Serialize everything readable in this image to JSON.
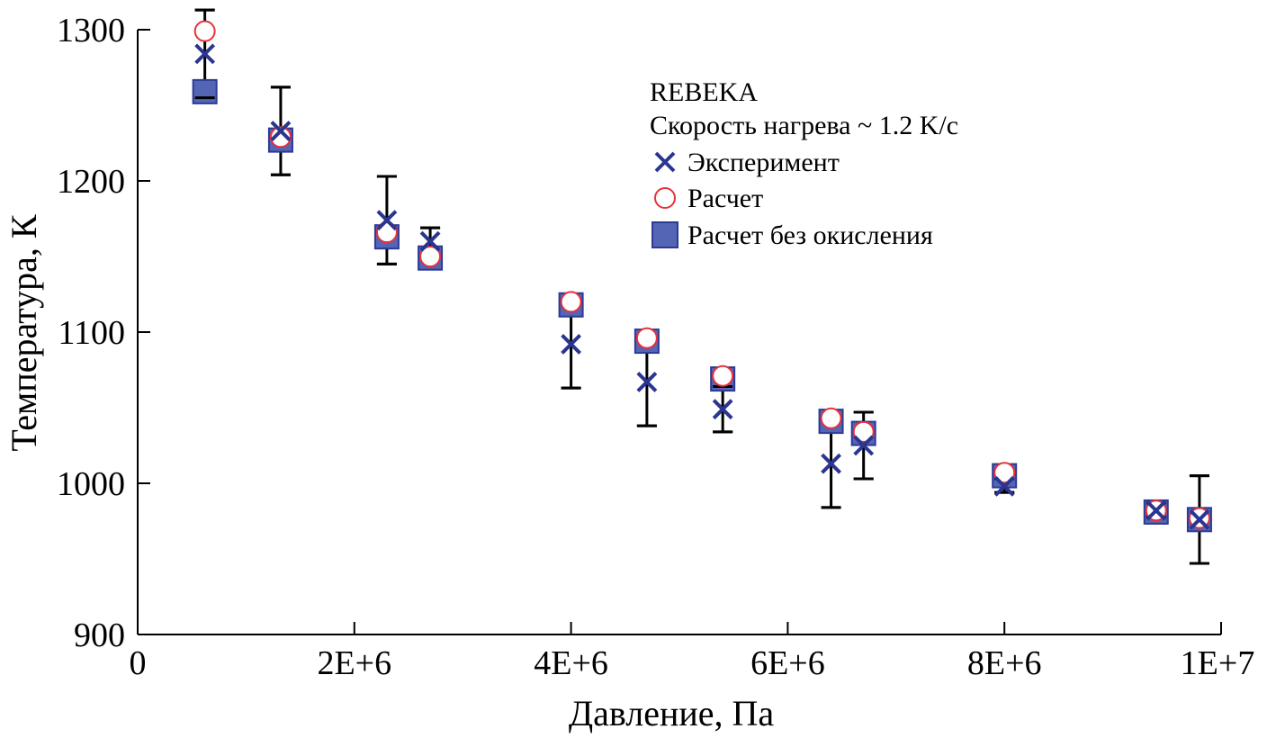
{
  "chart_data": {
    "type": "scatter",
    "title": "",
    "xlabel": "Давление, Па",
    "ylabel": "Температура, К",
    "xlim": [
      0,
      10000000
    ],
    "ylim": [
      900,
      1300
    ],
    "x_ticks": [
      0,
      2000000,
      4000000,
      6000000,
      8000000,
      10000000
    ],
    "x_tick_labels": [
      "0",
      "2E+6",
      "4E+6",
      "6E+6",
      "8E+6",
      "1E+7"
    ],
    "y_ticks": [
      900,
      1000,
      1100,
      1200,
      1300
    ],
    "y_tick_labels": [
      "900",
      "1000",
      "1100",
      "1200",
      "1300"
    ],
    "legend": {
      "title_lines": [
        "REBEKA",
        "Скорость нагрева ~ 1.2 K/c"
      ],
      "position": "upper-right"
    },
    "colors": {
      "experiment": "#2a3590",
      "calc": "#e8303a",
      "calc_no_ox_fill": "#5565b5",
      "calc_no_ox_edge": "#2c3a94",
      "error_bar": "#000000"
    },
    "series": [
      {
        "name": "Эксперимент",
        "marker": "x",
        "points": [
          {
            "x": 620000,
            "y": 1284,
            "err_low": 1255,
            "err_high": 1313
          },
          {
            "x": 1320000,
            "y": 1233,
            "err_low": 1204,
            "err_high": 1262
          },
          {
            "x": 2300000,
            "y": 1174,
            "err_low": 1145,
            "err_high": 1203
          },
          {
            "x": 2700000,
            "y": 1160,
            "err_low": 1150,
            "err_high": 1169
          },
          {
            "x": 4000000,
            "y": 1092,
            "err_low": 1063,
            "err_high": 1121
          },
          {
            "x": 4700000,
            "y": 1067,
            "err_low": 1038,
            "err_high": 1096
          },
          {
            "x": 5400000,
            "y": 1049,
            "err_low": 1034,
            "err_high": 1064
          },
          {
            "x": 6400000,
            "y": 1013,
            "err_low": 984,
            "err_high": 1042
          },
          {
            "x": 6700000,
            "y": 1025,
            "err_low": 1003,
            "err_high": 1047
          },
          {
            "x": 8000000,
            "y": 998,
            "err_low": 994,
            "err_high": 1003
          },
          {
            "x": 9400000,
            "y": 982,
            "err_low": 978,
            "err_high": 987
          },
          {
            "x": 9800000,
            "y": 976,
            "err_low": 947,
            "err_high": 1005
          }
        ]
      },
      {
        "name": "Расчет",
        "marker": "open-circle",
        "points": [
          {
            "x": 620000,
            "y": 1299
          },
          {
            "x": 1320000,
            "y": 1229
          },
          {
            "x": 2300000,
            "y": 1166
          },
          {
            "x": 2700000,
            "y": 1150
          },
          {
            "x": 4000000,
            "y": 1120
          },
          {
            "x": 4700000,
            "y": 1096
          },
          {
            "x": 5400000,
            "y": 1071
          },
          {
            "x": 6400000,
            "y": 1043
          },
          {
            "x": 6700000,
            "y": 1034
          },
          {
            "x": 8000000,
            "y": 1007
          },
          {
            "x": 9400000,
            "y": 982
          },
          {
            "x": 9800000,
            "y": 977
          }
        ]
      },
      {
        "name": "Расчет без окисления",
        "marker": "filled-square",
        "points": [
          {
            "x": 620000,
            "y": 1259
          },
          {
            "x": 1320000,
            "y": 1227
          },
          {
            "x": 2300000,
            "y": 1163
          },
          {
            "x": 2700000,
            "y": 1149
          },
          {
            "x": 4000000,
            "y": 1118
          },
          {
            "x": 4700000,
            "y": 1094
          },
          {
            "x": 5400000,
            "y": 1069
          },
          {
            "x": 6400000,
            "y": 1041
          },
          {
            "x": 6700000,
            "y": 1033
          },
          {
            "x": 8000000,
            "y": 1005
          },
          {
            "x": 9400000,
            "y": 981
          },
          {
            "x": 9800000,
            "y": 976
          }
        ]
      }
    ]
  }
}
